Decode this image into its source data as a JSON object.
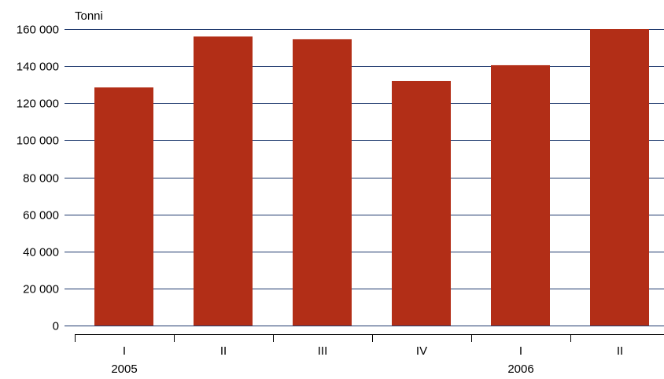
{
  "chart_data": {
    "type": "bar",
    "ylabel": "Tonni",
    "ylim": [
      0,
      160000
    ],
    "y_ticks": [
      0,
      20000,
      40000,
      60000,
      80000,
      100000,
      120000,
      140000,
      160000
    ],
    "y_tick_labels": [
      "0",
      "20 000",
      "40 000",
      "60 000",
      "80 000",
      "100 000",
      "120 000",
      "140 000",
      "160 000"
    ],
    "categories": [
      "I",
      "II",
      "III",
      "IV",
      "I",
      "II"
    ],
    "groups": [
      {
        "label": "2005",
        "start": 0,
        "end": 3
      },
      {
        "label": "2006",
        "start": 4,
        "end": 5
      }
    ],
    "values": [
      128500,
      156000,
      154500,
      132000,
      140500,
      160000
    ],
    "grid": true,
    "bar_color": "#B22E17",
    "grid_color": "#1F3A6E"
  }
}
